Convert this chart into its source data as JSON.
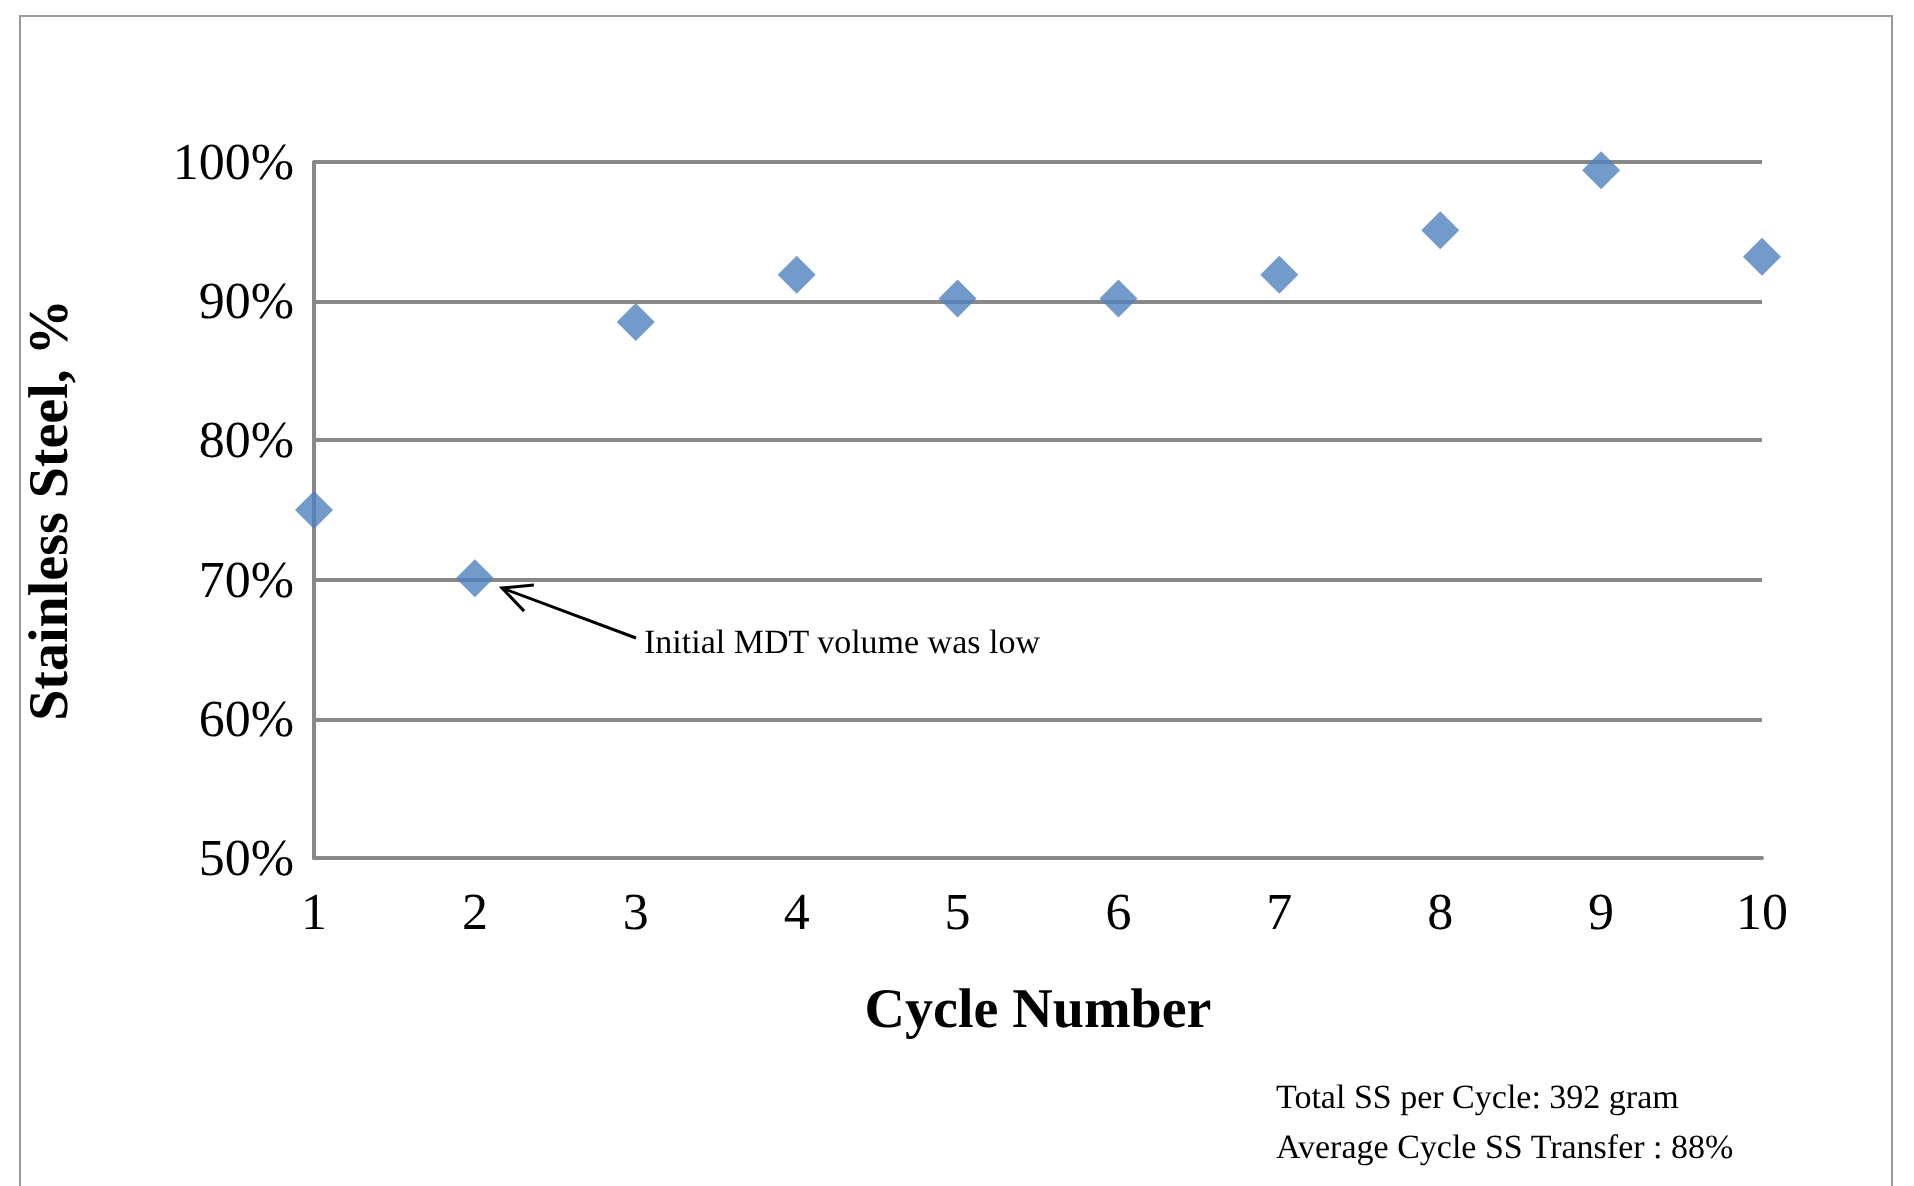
{
  "chart_data": {
    "type": "scatter",
    "xlabel": "Cycle Number",
    "ylabel": "Stainless Steel, %",
    "x": [
      1,
      2,
      3,
      4,
      5,
      6,
      7,
      8,
      9,
      10
    ],
    "values": [
      75,
      70.1,
      88.5,
      91.9,
      90.2,
      90.2,
      91.9,
      95.1,
      99.4,
      93.2
    ],
    "color": "#4f81bd",
    "marker": "diamond",
    "grid": "y",
    "xlim": [
      1,
      10
    ],
    "xticks": [
      1,
      2,
      3,
      4,
      5,
      6,
      7,
      8,
      9,
      10
    ],
    "ylim": [
      50,
      100
    ],
    "yticks": [
      {
        "value": 50,
        "label": "50%"
      },
      {
        "value": 60,
        "label": "60%"
      },
      {
        "value": 70,
        "label": "70%"
      },
      {
        "value": 80,
        "label": "80%"
      },
      {
        "value": 90,
        "label": "90%"
      },
      {
        "value": 100,
        "label": "100%"
      }
    ],
    "annotations": [
      "Initial MDT volume was low",
      "Total SS per Cycle: 392 gram",
      "Average Cycle SS Transfer : 88%"
    ]
  }
}
